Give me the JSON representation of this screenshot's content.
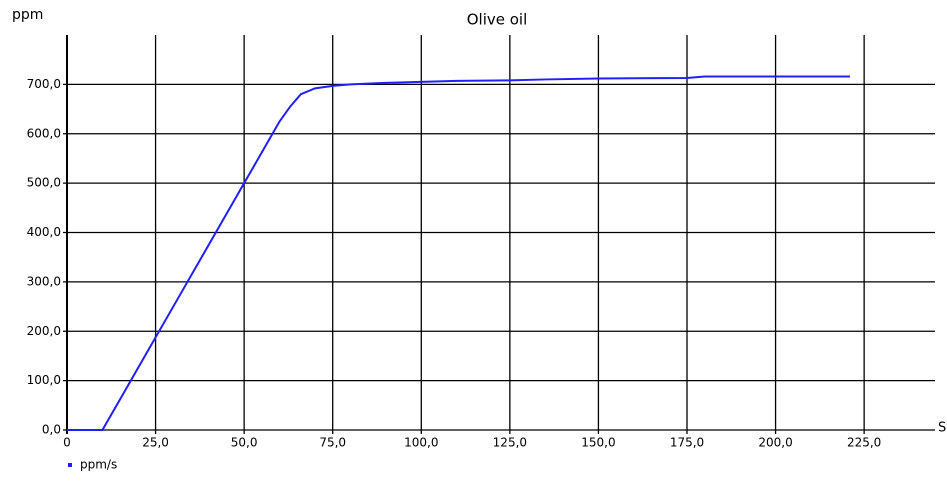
{
  "chart_data": {
    "type": "line",
    "title": "Olive oil",
    "y_label": "ppm",
    "x_label": "S",
    "x": [
      0,
      10,
      20,
      30,
      40,
      50,
      60,
      63,
      66,
      70,
      75,
      80,
      90,
      100,
      110,
      125,
      135,
      150,
      175,
      180,
      200,
      221
    ],
    "series": [
      {
        "name": "ppm/s",
        "color": "#1f1fff",
        "values": [
          0,
          0,
          125,
          250,
          375,
          500,
          625,
          655,
          680,
          692,
          697,
          700,
          703,
          705,
          707,
          708,
          710,
          712,
          713,
          716,
          716,
          716
        ]
      }
    ],
    "xlim": [
      0,
      245
    ],
    "ylim": [
      0,
      800
    ],
    "xticks": [
      0,
      {
        "value": 25,
        "label": "25,0"
      },
      {
        "value": 50,
        "label": "50,0"
      },
      {
        "value": 75,
        "label": "75,0"
      },
      {
        "value": 100,
        "label": "100,0"
      },
      {
        "value": 125,
        "label": "125,0"
      },
      {
        "value": 150,
        "label": "150,0"
      },
      {
        "value": 175,
        "label": "175,0"
      },
      {
        "value": 200,
        "label": "200,0"
      },
      {
        "value": 225,
        "label": "225,0"
      }
    ],
    "yticks": [
      {
        "value": 0,
        "label": "0,0"
      },
      {
        "value": 100,
        "label": "100,0"
      },
      {
        "value": 200,
        "label": "200,0"
      },
      {
        "value": 300,
        "label": "300,0"
      },
      {
        "value": 400,
        "label": "400,0"
      },
      {
        "value": 500,
        "label": "500,0"
      },
      {
        "value": 600,
        "label": "600,0"
      },
      {
        "value": 700,
        "label": "700,0"
      }
    ],
    "grid": true,
    "legend": "bottom-left"
  }
}
